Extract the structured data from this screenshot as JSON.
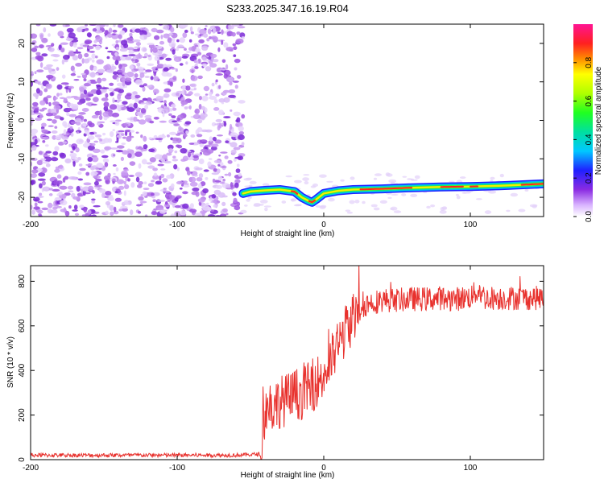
{
  "title": "S233.2025.347.16.19.R04",
  "chart_data": [
    {
      "type": "heatmap",
      "xlabel": "Height of straight line (km)",
      "ylabel": "Frequency (Hz)",
      "xlim": [
        -200,
        150
      ],
      "ylim": [
        -25,
        25
      ],
      "x_ticks": [
        -200,
        -100,
        0,
        100
      ],
      "y_ticks": [
        -20,
        -10,
        0,
        10,
        20
      ],
      "noise_region_x": [
        -200,
        -55
      ],
      "signal_track": {
        "x": [
          -55,
          -50,
          -40,
          -30,
          -20,
          -15,
          -10,
          -8,
          -5,
          0,
          10,
          20,
          40,
          60,
          80,
          100,
          120,
          150
        ],
        "freq": [
          -19,
          -18.5,
          -18.2,
          -18,
          -18.5,
          -20,
          -21,
          -21.3,
          -20.5,
          -19,
          -18.3,
          -18,
          -17.8,
          -17.5,
          -17.3,
          -17.2,
          -17,
          -16.5
        ]
      },
      "colorbar": {
        "label": "Normalized spectral amplitude",
        "ticks": [
          "0.0",
          "0.2",
          "0.4",
          "0.6",
          "0.8"
        ],
        "range": [
          0,
          1
        ]
      }
    },
    {
      "type": "line",
      "xlabel": "Height of straight line (km)",
      "ylabel": "SNR (10 * v/v)",
      "xlim": [
        -200,
        150
      ],
      "ylim": [
        0,
        870
      ],
      "x_ticks": [
        -200,
        -100,
        0,
        100
      ],
      "y_ticks": [
        0,
        200,
        400,
        600,
        800
      ],
      "color": "#e8312d",
      "series": [
        {
          "name": "SNR",
          "x": [
            -200,
            -150,
            -100,
            -60,
            -43,
            -41,
            -38,
            -35,
            -30,
            -25,
            -20,
            -15,
            -10,
            -5,
            0,
            5,
            10,
            15,
            20,
            25,
            30,
            40,
            50,
            60,
            70,
            80,
            90,
            100,
            106,
            110,
            120,
            130,
            140,
            150
          ],
          "values": [
            20,
            20,
            20,
            20,
            25,
            180,
            250,
            240,
            260,
            270,
            290,
            300,
            320,
            350,
            380,
            440,
            520,
            580,
            640,
            680,
            700,
            715,
            715,
            720,
            720,
            725,
            720,
            730,
            760,
            725,
            725,
            725,
            725,
            725
          ]
        }
      ]
    }
  ]
}
